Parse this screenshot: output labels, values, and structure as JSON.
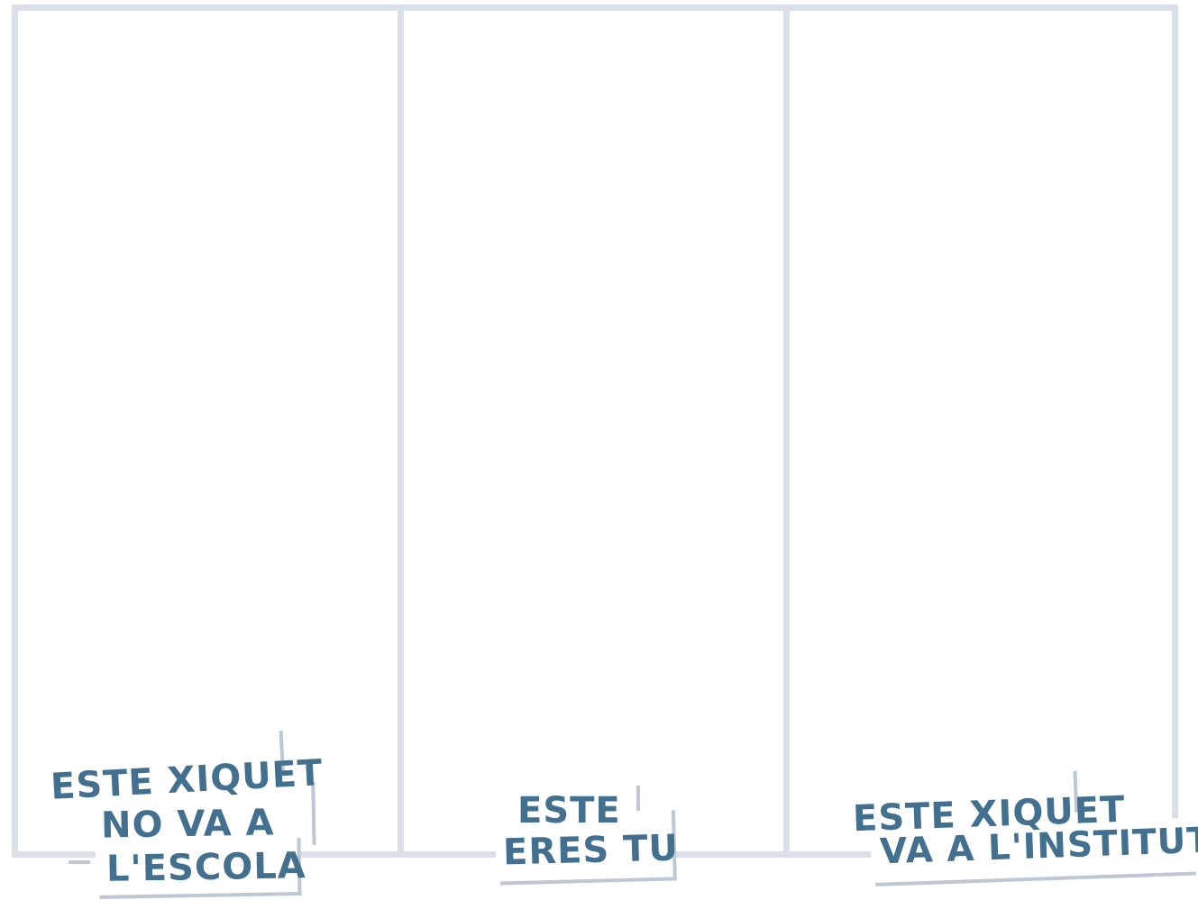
{
  "panels": [
    {
      "id": "left",
      "caption": [
        "ESTE XIQUET",
        "NO VA A",
        "L'ESCOLA"
      ]
    },
    {
      "id": "middle",
      "caption": [
        "ESTE",
        "ERES TU"
      ]
    },
    {
      "id": "right",
      "caption": [
        "ESTE XIQUET",
        "VA A L'INSTITUT"
      ]
    }
  ],
  "colors": {
    "border": "#d9e0e7",
    "text": "#43708f",
    "shadow": "#bcc8d3",
    "background": "#ffffff"
  }
}
